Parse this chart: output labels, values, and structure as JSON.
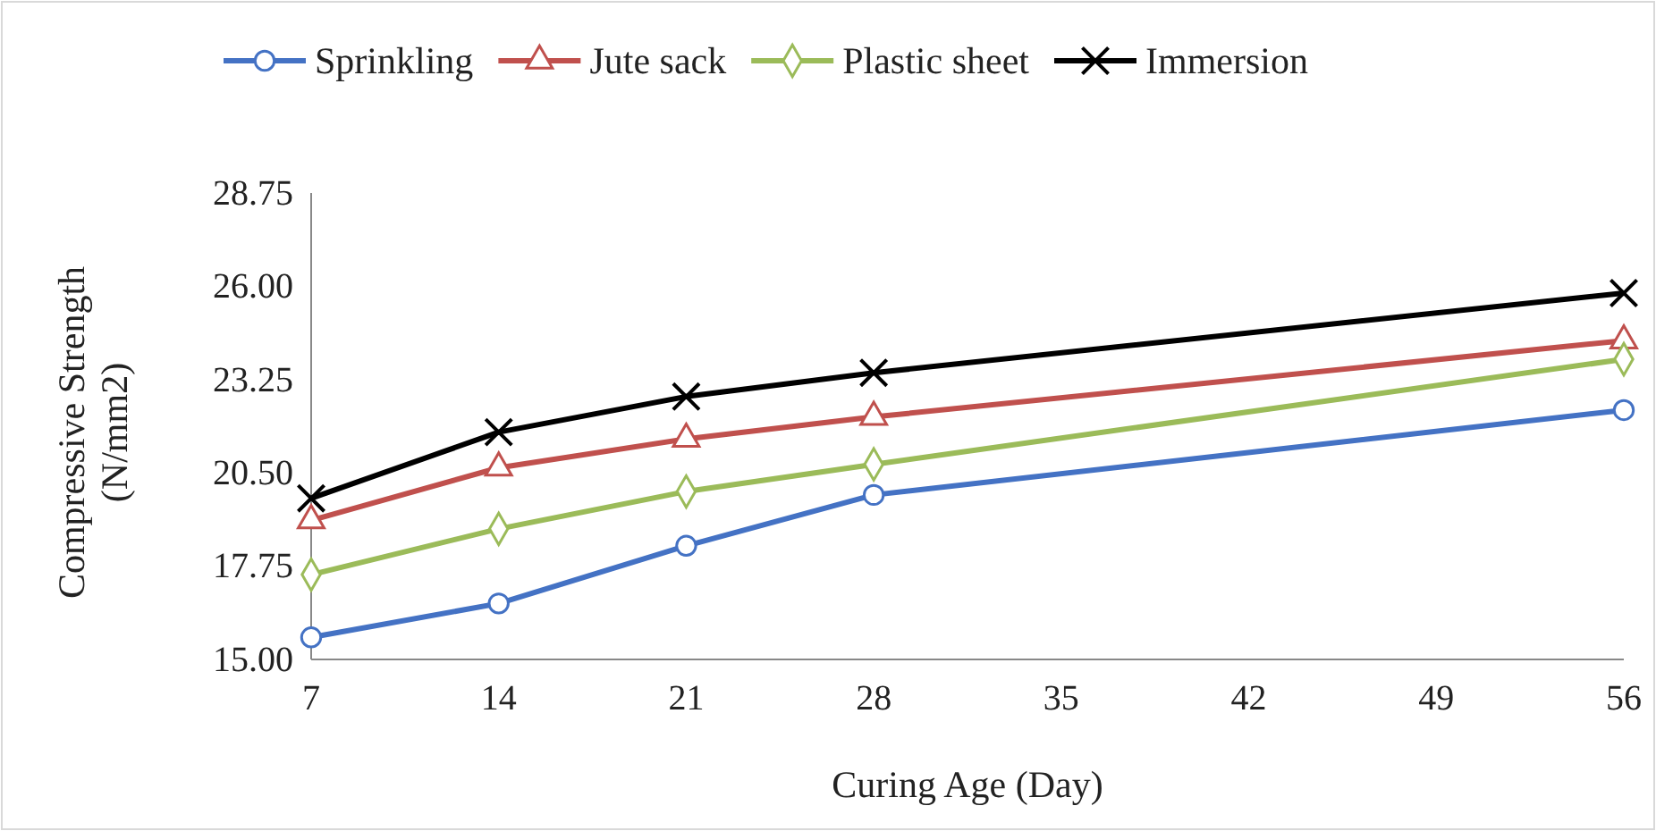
{
  "chart_data": {
    "type": "line",
    "xlabel": "Curing Age (Day)",
    "ylabel": "Compressive Strength (N/mm2)",
    "x": [
      7,
      14,
      21,
      28,
      56
    ],
    "xlim": [
      7,
      56
    ],
    "xticks": [
      7,
      14,
      21,
      28,
      35,
      42,
      49,
      56
    ],
    "ylim": [
      15,
      28.75
    ],
    "yticks": [
      {
        "value": 15,
        "label": "15.00"
      },
      {
        "value": 17.75,
        "label": "17.75"
      },
      {
        "value": 20.5,
        "label": "20.50"
      },
      {
        "value": 23.25,
        "label": "23.25"
      },
      {
        "value": 26,
        "label": "26.00"
      },
      {
        "value": 28.75,
        "label": "28.75"
      }
    ],
    "grid": false,
    "legend": "top",
    "line_style": "solid",
    "series": [
      {
        "name": "Sprinkling",
        "color": "#4472c4",
        "marker": "circle",
        "values": [
          15.65,
          16.65,
          18.35,
          19.85,
          22.35
        ]
      },
      {
        "name": "Jute sack",
        "color": "#c0504d",
        "marker": "triangle",
        "values": [
          19.1,
          20.65,
          21.5,
          22.15,
          24.4
        ]
      },
      {
        "name": "Plastic sheet",
        "color": "#9bbb59",
        "marker": "diamond",
        "values": [
          17.5,
          18.85,
          19.95,
          20.75,
          23.85
        ]
      },
      {
        "name": "Immersion",
        "color": "#000000",
        "marker": "cross",
        "values": [
          19.75,
          21.7,
          22.75,
          23.45,
          25.8
        ]
      }
    ]
  }
}
